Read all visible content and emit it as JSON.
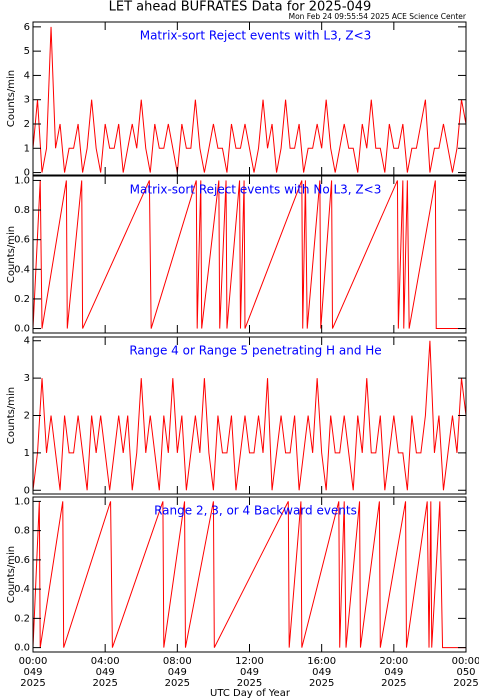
{
  "header": {
    "title": "LET ahead BUFRATES Data for 2025-049",
    "timestamp": "Mon Feb 24 09:55:54 2025 ACE Science Center"
  },
  "x_label": "UTC Day of Year",
  "chart_data": [
    {
      "type": "line",
      "annotation": "Matrix-sort Reject events with L3, Z<3",
      "y_label": "Counts/min",
      "color": "#ff0000",
      "xlim": [
        0,
        24
      ],
      "xticks": [
        0,
        4,
        8,
        12,
        16,
        20,
        24
      ],
      "ylim": [
        -0.1,
        6.2
      ],
      "yticks": [
        0,
        1,
        2,
        3,
        4,
        5,
        6
      ],
      "x": [
        0,
        0.25,
        0.5,
        0.75,
        1,
        1.25,
        1.5,
        1.75,
        2,
        2.25,
        2.5,
        2.75,
        3,
        3.25,
        3.5,
        3.75,
        4,
        4.25,
        4.5,
        4.75,
        5,
        5.25,
        5.5,
        5.75,
        6,
        6.25,
        6.5,
        6.75,
        7,
        7.25,
        7.5,
        7.75,
        8,
        8.25,
        8.5,
        8.75,
        9,
        9.25,
        9.5,
        9.75,
        10,
        10.25,
        10.5,
        10.75,
        11,
        11.25,
        11.5,
        11.75,
        12,
        12.25,
        12.5,
        12.75,
        13,
        13.25,
        13.5,
        13.75,
        14,
        14.25,
        14.5,
        14.75,
        15,
        15.25,
        15.5,
        15.75,
        16,
        16.25,
        16.5,
        16.75,
        17,
        17.25,
        17.5,
        17.75,
        18,
        18.25,
        18.5,
        18.75,
        19,
        19.25,
        19.5,
        19.75,
        20,
        20.25,
        20.5,
        20.75,
        21,
        21.25,
        21.5,
        21.75,
        22,
        22.25,
        22.5,
        22.75,
        23,
        23.25,
        23.5,
        23.75,
        24
      ],
      "values": [
        1,
        3,
        0,
        1,
        6,
        1,
        2,
        0,
        1,
        1,
        2,
        0,
        1,
        3,
        1,
        0,
        2,
        1,
        1,
        2,
        0,
        1,
        2,
        1,
        3,
        1,
        0,
        2,
        1,
        1,
        2,
        1,
        0,
        2,
        1,
        1,
        3,
        1,
        0,
        1,
        2,
        1,
        1,
        0,
        2,
        1,
        1,
        2,
        1,
        0,
        1,
        3,
        1,
        2,
        0,
        1,
        3,
        1,
        1,
        2,
        0,
        1,
        1,
        2,
        1,
        3,
        1,
        0,
        1,
        2,
        1,
        1,
        0,
        2,
        1,
        3,
        1,
        1,
        0,
        2,
        1,
        1,
        2,
        0,
        1,
        1,
        2,
        3,
        0,
        1,
        1,
        2,
        1,
        0,
        1,
        3,
        2
      ]
    },
    {
      "type": "line",
      "annotation": "Matrix-sort Reject events with No L3, Z<3",
      "y_label": "Counts/min",
      "color": "#ff0000",
      "xlim": [
        0,
        24
      ],
      "xticks": [
        0,
        4,
        8,
        12,
        16,
        20,
        24
      ],
      "ylim": [
        -0.03,
        1.03
      ],
      "yticks": [
        {
          "value": 0,
          "label": "0.0"
        },
        {
          "value": 0.2,
          "label": "0.2"
        },
        {
          "value": 0.4,
          "label": "0.4"
        },
        {
          "value": 0.6,
          "label": "0.6"
        },
        {
          "value": 0.8,
          "label": "0.8"
        },
        {
          "value": 1,
          "label": "1.0"
        }
      ],
      "x": [
        0,
        0.4,
        0.5,
        1.85,
        1.9,
        2.7,
        2.75,
        6.45,
        6.55,
        9.05,
        9.1,
        9.3,
        9.35,
        10.3,
        10.35,
        10.7,
        10.75,
        11.45,
        11.5,
        11.7,
        11.75,
        14.9,
        14.95,
        15.1,
        15.2,
        15.9,
        15.95,
        16.55,
        16.6,
        20.2,
        20.25,
        20.5,
        20.55,
        20.75,
        20.85,
        22.3,
        22.35,
        24
      ],
      "values": [
        0,
        1,
        0,
        1,
        0,
        1,
        0,
        1,
        0,
        1,
        0,
        1,
        0,
        1,
        0,
        1,
        0,
        1,
        0,
        1,
        0,
        1,
        0,
        1,
        0,
        1,
        0,
        1,
        0,
        1,
        0,
        1,
        0,
        1,
        0,
        1,
        0,
        0
      ]
    },
    {
      "type": "line",
      "annotation": "Range 4 or Range 5 penetrating H and He",
      "y_label": "Counts/min",
      "color": "#ff0000",
      "xlim": [
        0,
        24
      ],
      "xticks": [
        0,
        4,
        8,
        12,
        16,
        20,
        24
      ],
      "ylim": [
        -0.1,
        4.1
      ],
      "yticks": [
        0,
        1,
        2,
        3,
        4
      ],
      "x": [
        0,
        0.25,
        0.5,
        0.75,
        1,
        1.25,
        1.5,
        1.75,
        2,
        2.25,
        2.5,
        2.75,
        3,
        3.25,
        3.5,
        3.75,
        4,
        4.25,
        4.5,
        4.75,
        5,
        5.25,
        5.5,
        5.75,
        6,
        6.25,
        6.5,
        6.75,
        7,
        7.25,
        7.5,
        7.75,
        8,
        8.25,
        8.5,
        8.75,
        9,
        9.25,
        9.5,
        9.75,
        10,
        10.25,
        10.5,
        10.75,
        11,
        11.25,
        11.5,
        11.75,
        12,
        12.25,
        12.5,
        12.75,
        13,
        13.25,
        13.5,
        13.75,
        14,
        14.25,
        14.5,
        14.75,
        15,
        15.25,
        15.5,
        15.75,
        16,
        16.25,
        16.5,
        16.75,
        17,
        17.25,
        17.5,
        17.75,
        18,
        18.25,
        18.5,
        18.75,
        19,
        19.25,
        19.5,
        19.75,
        20,
        20.25,
        20.5,
        20.75,
        21,
        21.25,
        21.5,
        21.75,
        22,
        22.25,
        22.5,
        22.75,
        23,
        23.25,
        23.5,
        23.75,
        24
      ],
      "values": [
        0,
        1,
        3,
        1,
        2,
        1,
        0,
        2,
        1,
        1,
        2,
        1,
        0,
        2,
        1,
        2,
        1,
        0,
        1,
        2,
        1,
        2,
        0,
        1,
        3,
        1,
        2,
        1,
        0,
        2,
        1,
        3,
        1,
        2,
        0,
        1,
        2,
        1,
        3,
        1,
        0,
        2,
        1,
        1,
        2,
        0,
        1,
        2,
        1,
        1,
        2,
        1,
        3,
        0,
        1,
        2,
        1,
        1,
        2,
        0,
        1,
        2,
        1,
        3,
        1,
        0,
        2,
        1,
        1,
        2,
        1,
        0,
        2,
        1,
        3,
        1,
        1,
        2,
        0,
        1,
        2,
        1,
        1,
        0,
        2,
        1,
        1,
        2,
        4,
        1,
        2,
        0,
        1,
        2,
        1,
        3,
        2
      ]
    },
    {
      "type": "line",
      "annotation": "Range 2, 3, or 4 Backward events",
      "y_label": "Counts/min",
      "color": "#ff0000",
      "xlim": [
        0,
        24
      ],
      "xticks": [
        {
          "value": 0,
          "label": [
            "00:00",
            "049",
            "2025"
          ]
        },
        {
          "value": 4,
          "label": [
            "04:00",
            "049",
            "2025"
          ]
        },
        {
          "value": 8,
          "label": [
            "08:00",
            "049",
            "2025"
          ]
        },
        {
          "value": 12,
          "label": [
            "12:00",
            "049",
            "2025"
          ]
        },
        {
          "value": 16,
          "label": [
            "16:00",
            "049",
            "2025"
          ]
        },
        {
          "value": 20,
          "label": [
            "20:00",
            "049",
            "2025"
          ]
        },
        {
          "value": 24,
          "label": [
            "00:00",
            "050",
            "2025"
          ]
        }
      ],
      "ylim": [
        -0.03,
        1.03
      ],
      "yticks": [
        {
          "value": 0,
          "label": "0.0"
        },
        {
          "value": 0.2,
          "label": "0.2"
        },
        {
          "value": 0.4,
          "label": "0.4"
        },
        {
          "value": 0.6,
          "label": "0.6"
        },
        {
          "value": 0.8,
          "label": "0.8"
        },
        {
          "value": 1,
          "label": "1.0"
        }
      ],
      "x": [
        0,
        0.35,
        0.4,
        1.65,
        1.7,
        4.3,
        4.4,
        7.2,
        7.25,
        8.4,
        8.45,
        10.0,
        10.05,
        14.15,
        14.2,
        14.85,
        14.9,
        16.95,
        17.0,
        17.25,
        17.35,
        18.1,
        18.15,
        19.2,
        19.25,
        20.65,
        20.7,
        21.85,
        21.95,
        22.05,
        22.1,
        22.55,
        22.7,
        24
      ],
      "values": [
        0,
        1,
        0,
        1,
        0,
        1,
        0,
        1,
        0,
        1,
        0,
        1,
        0,
        1,
        0,
        1,
        0,
        1,
        0,
        1,
        0,
        1,
        0,
        1,
        0,
        1,
        0,
        1,
        0,
        1,
        0,
        1,
        0,
        0
      ]
    }
  ]
}
